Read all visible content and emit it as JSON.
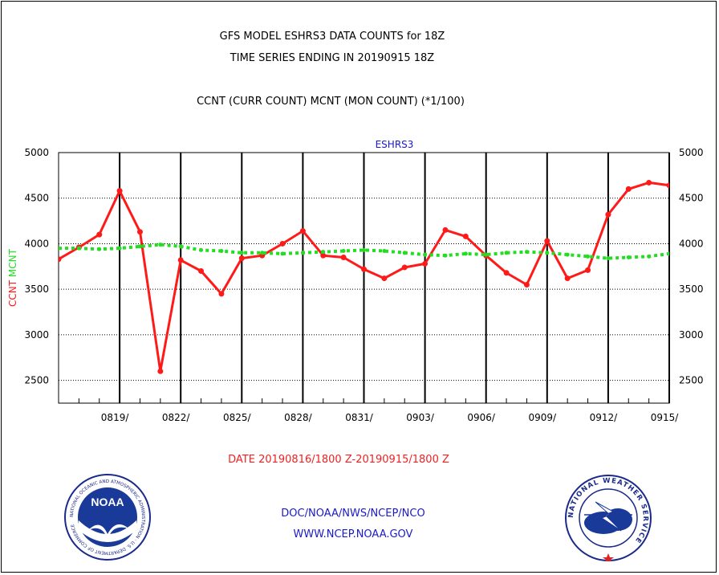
{
  "header": {
    "title_line1": "GFS MODEL ESHRS3 DATA COUNTS for 18Z",
    "title_line2": "TIME SERIES ENDING IN 20190915 18Z",
    "subtitle": "CCNT (CURR COUNT) MCNT (MON COUNT) (*1/100)"
  },
  "footer": {
    "date_range": "DATE 20190816/1800 Z-20190915/1800 Z",
    "org_path": "DOC/NOAA/NWS/NCEP/NCO",
    "url": "WWW.NCEP.NOAA.GOV"
  },
  "logos": {
    "left_text": "NOAA",
    "left_ring_text": "NATIONAL OCEANIC AND ATMOSPHERIC ADMINISTRATION · U.S. DEPARTMENT OF COMMERCE",
    "right_ring_text": "NATIONAL WEATHER SERVICE"
  },
  "colors": {
    "ccnt": "#ff1a1a",
    "mcnt": "#22dd22",
    "label_blue": "#1a1acc",
    "date_red": "#ee2222"
  },
  "chart_data": {
    "type": "line",
    "title": "ESHRS3",
    "ylabel_left": [
      "CCNT",
      "MCNT"
    ],
    "ylim": [
      2250,
      5000
    ],
    "yticks": [
      2500,
      3000,
      3500,
      4000,
      4500,
      5000
    ],
    "xticks": [
      "0819/",
      "0822/",
      "0825/",
      "0828/",
      "0831/",
      "0903/",
      "0906/",
      "0909/",
      "0912/",
      "0915/"
    ],
    "x_start": "0816",
    "x_end": "0915",
    "grid": true,
    "series": [
      {
        "name": "CCNT",
        "color": "#ff1a1a",
        "style": "solid",
        "values": [
          3830,
          3960,
          4100,
          4580,
          4130,
          2600,
          3820,
          3700,
          3450,
          3840,
          3870,
          4000,
          4140,
          3870,
          3850,
          3720,
          3620,
          3740,
          3780,
          4150,
          4080,
          3870,
          3680,
          3550,
          4030,
          3620,
          3710,
          4320,
          4600,
          4670,
          4640
        ]
      },
      {
        "name": "MCNT",
        "color": "#22dd22",
        "style": "dotted",
        "values": [
          3950,
          3950,
          3940,
          3950,
          3970,
          3990,
          3970,
          3930,
          3920,
          3900,
          3900,
          3890,
          3900,
          3910,
          3920,
          3930,
          3920,
          3900,
          3880,
          3870,
          3890,
          3880,
          3900,
          3910,
          3900,
          3880,
          3860,
          3840,
          3850,
          3860,
          3890
        ]
      }
    ]
  }
}
